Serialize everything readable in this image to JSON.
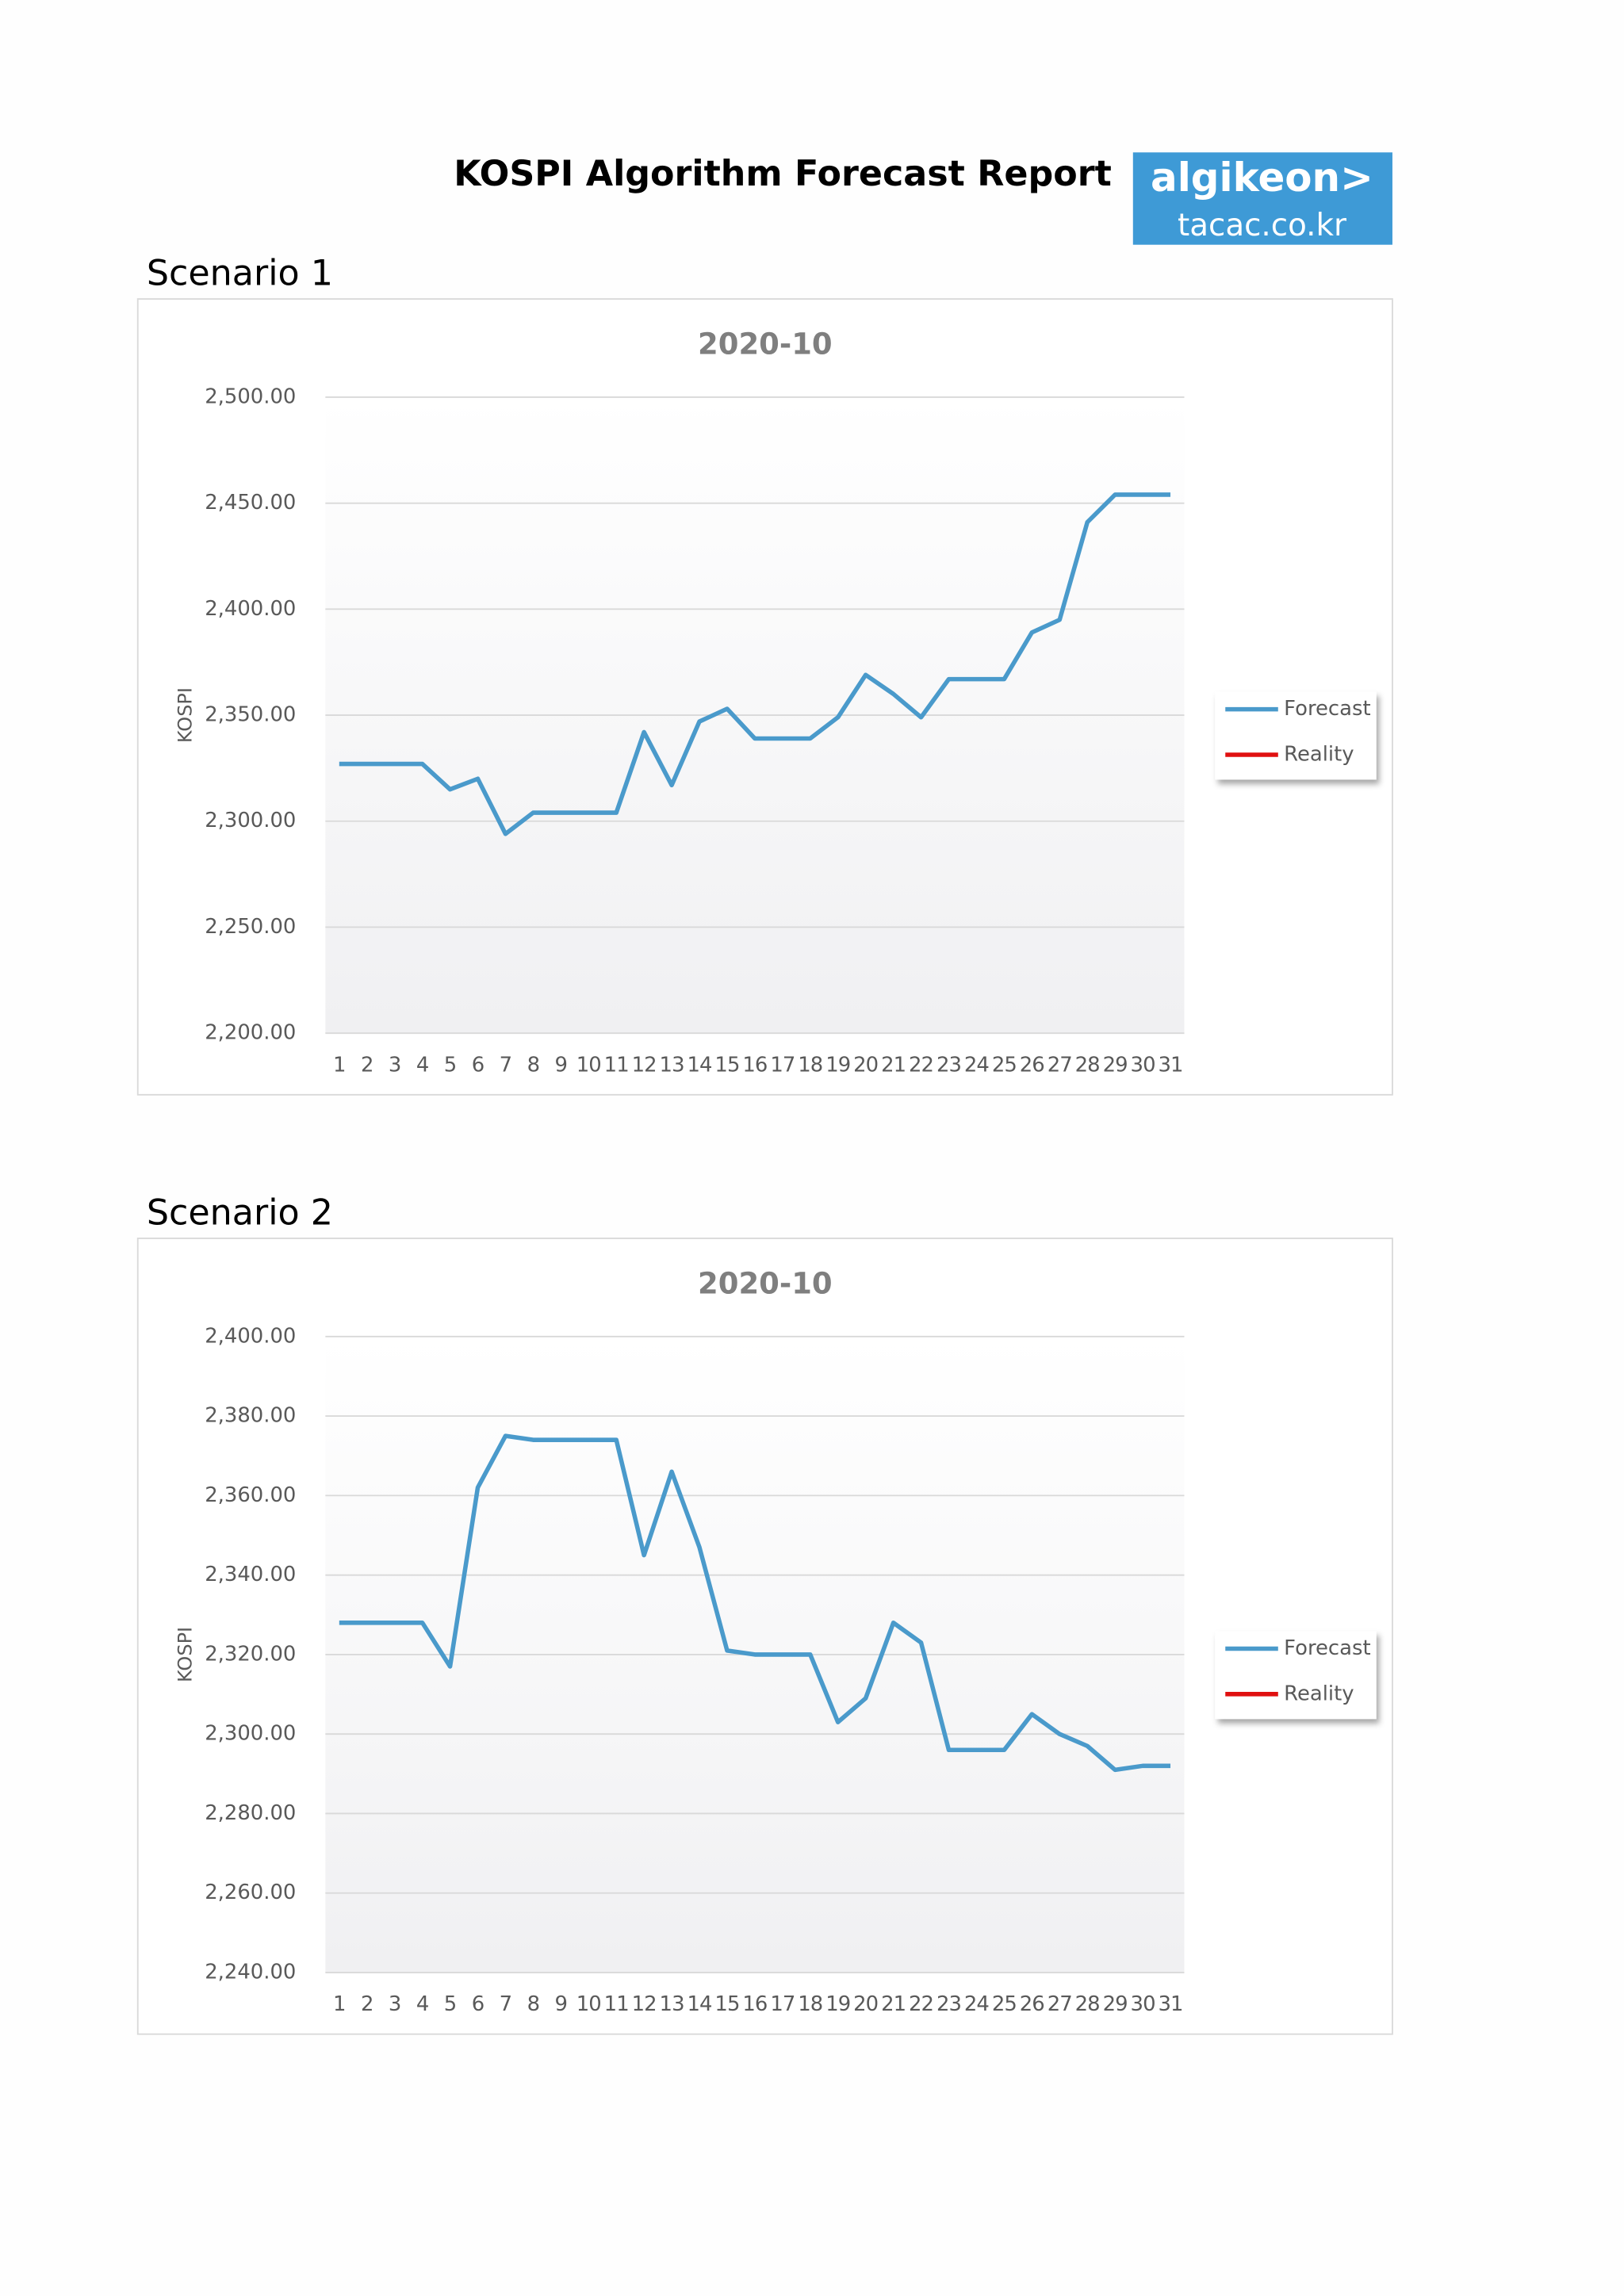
{
  "header": {
    "title": "KOSPI Algorithm Forecast Report",
    "logo": {
      "brand": "algikeon>",
      "site": "tacac.co.kr"
    }
  },
  "sections": [
    "Scenario 1",
    "Scenario 2"
  ],
  "chart_data": [
    {
      "type": "line",
      "title": "2020-10",
      "y_label": "KOSPI",
      "categories": [
        "1",
        "2",
        "3",
        "4",
        "5",
        "6",
        "7",
        "8",
        "9",
        "10",
        "11",
        "12",
        "13",
        "14",
        "15",
        "16",
        "17",
        "18",
        "19",
        "20",
        "21",
        "22",
        "23",
        "24",
        "25",
        "26",
        "27",
        "28",
        "29",
        "30",
        "31"
      ],
      "series": [
        {
          "name": "Forecast",
          "color": "#4a9acb",
          "values": [
            2327,
            2327,
            2327,
            2327,
            2315,
            2320,
            2294,
            2304,
            2304,
            2304,
            2304,
            2342,
            2317,
            2347,
            2353,
            2339,
            2339,
            2339,
            2349,
            2369,
            2360,
            2349,
            2367,
            2367,
            2367,
            2389,
            2395,
            2441,
            2454,
            2454,
            2454
          ]
        },
        {
          "name": "Reality",
          "color": "#e01010",
          "values": [
            null,
            null,
            null,
            null,
            null,
            null,
            null,
            null,
            null,
            null,
            null,
            null,
            null,
            null,
            null,
            null,
            null,
            null,
            null,
            null,
            null,
            null,
            null,
            null,
            null,
            null,
            null,
            null,
            null,
            null,
            null
          ]
        }
      ],
      "ylim": [
        2200,
        2500
      ],
      "yticks": [
        {
          "value": 2200,
          "label": "2,200.00"
        },
        {
          "value": 2250,
          "label": "2,250.00"
        },
        {
          "value": 2300,
          "label": "2,300.00"
        },
        {
          "value": 2350,
          "label": "2,350.00"
        },
        {
          "value": 2400,
          "label": "2,400.00"
        },
        {
          "value": 2450,
          "label": "2,450.00"
        },
        {
          "value": 2500,
          "label": "2,500.00"
        }
      ],
      "grid": true,
      "legend": "right"
    },
    {
      "type": "line",
      "title": "2020-10",
      "y_label": "KOSPI",
      "categories": [
        "1",
        "2",
        "3",
        "4",
        "5",
        "6",
        "7",
        "8",
        "9",
        "10",
        "11",
        "12",
        "13",
        "14",
        "15",
        "16",
        "17",
        "18",
        "19",
        "20",
        "21",
        "22",
        "23",
        "24",
        "25",
        "26",
        "27",
        "28",
        "29",
        "30",
        "31"
      ],
      "series": [
        {
          "name": "Forecast",
          "color": "#4a9acb",
          "values": [
            2328,
            2328,
            2328,
            2328,
            2317,
            2362,
            2375,
            2374,
            2374,
            2374,
            2374,
            2345,
            2366,
            2347,
            2321,
            2320,
            2320,
            2320,
            2303,
            2309,
            2328,
            2323,
            2296,
            2296,
            2296,
            2305,
            2300,
            2297,
            2291,
            2292,
            2292
          ]
        },
        {
          "name": "Reality",
          "color": "#e01010",
          "values": [
            null,
            null,
            null,
            null,
            null,
            null,
            null,
            null,
            null,
            null,
            null,
            null,
            null,
            null,
            null,
            null,
            null,
            null,
            null,
            null,
            null,
            null,
            null,
            null,
            null,
            null,
            null,
            null,
            null,
            null,
            null
          ]
        }
      ],
      "ylim": [
        2240,
        2400
      ],
      "yticks": [
        {
          "value": 2240,
          "label": "2,240.00"
        },
        {
          "value": 2260,
          "label": "2,260.00"
        },
        {
          "value": 2280,
          "label": "2,280.00"
        },
        {
          "value": 2300,
          "label": "2,300.00"
        },
        {
          "value": 2320,
          "label": "2,320.00"
        },
        {
          "value": 2340,
          "label": "2,340.00"
        },
        {
          "value": 2360,
          "label": "2,360.00"
        },
        {
          "value": 2380,
          "label": "2,380.00"
        },
        {
          "value": 2400,
          "label": "2,400.00"
        }
      ],
      "grid": true,
      "legend": "right"
    }
  ]
}
